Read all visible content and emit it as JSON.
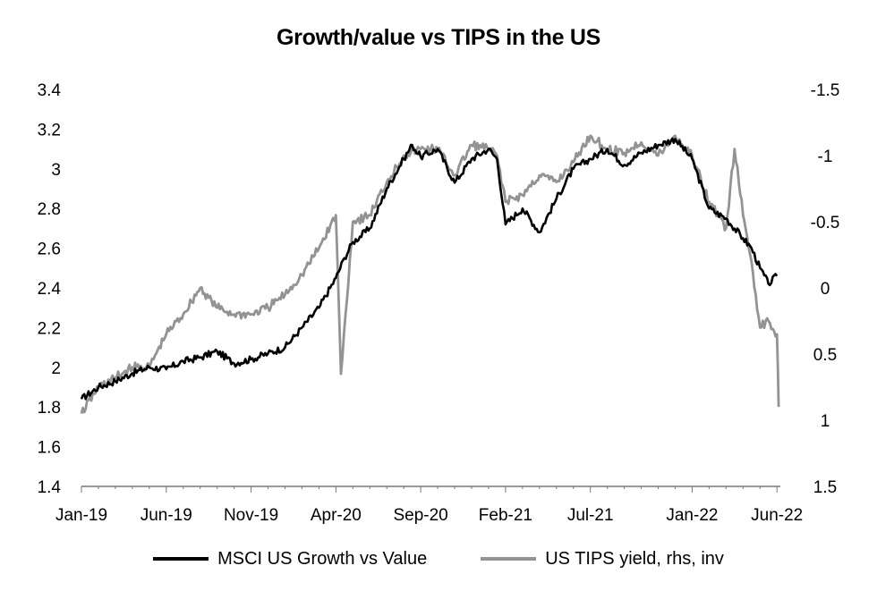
{
  "chart_data": {
    "type": "line",
    "title": "Growth/value vs TIPS in the US",
    "x_tick_labels": [
      "Jan-19",
      "Jun-19",
      "Nov-19",
      "Apr-20",
      "Sep-20",
      "Feb-21",
      "Jul-21",
      "Jan-22",
      "Jun-22"
    ],
    "x_tick_months": [
      0,
      5,
      10,
      15,
      20,
      25,
      30,
      36,
      41
    ],
    "x_range_months": [
      0,
      41.2
    ],
    "y_left": {
      "ylim": [
        1.4,
        3.4
      ],
      "ticks": [
        "1.4",
        "1.6",
        "1.8",
        "2",
        "2.2",
        "2.4",
        "2.6",
        "2.8",
        "3",
        "3.2",
        "3.4"
      ]
    },
    "y_right": {
      "ylim": [
        1.5,
        -1.5
      ],
      "inverted": true,
      "ticks": [
        "1.5",
        "1",
        "0.5",
        "0",
        "-0.5",
        "-1",
        "-1.5"
      ]
    },
    "series": [
      {
        "name": "MSCI US Growth vs Value",
        "axis": "left",
        "color": "#000000",
        "points": [
          [
            0,
            1.84
          ],
          [
            1,
            1.9
          ],
          [
            2,
            1.93
          ],
          [
            3,
            1.97
          ],
          [
            4,
            2.0
          ],
          [
            5,
            1.99
          ],
          [
            6,
            2.03
          ],
          [
            7,
            2.05
          ],
          [
            8,
            2.08
          ],
          [
            9,
            2.02
          ],
          [
            10,
            2.04
          ],
          [
            11,
            2.07
          ],
          [
            12,
            2.1
          ],
          [
            13,
            2.2
          ],
          [
            14,
            2.3
          ],
          [
            15,
            2.45
          ],
          [
            15.5,
            2.55
          ],
          [
            16,
            2.63
          ],
          [
            17,
            2.7
          ],
          [
            18,
            2.9
          ],
          [
            19,
            3.05
          ],
          [
            19.5,
            3.12
          ],
          [
            20,
            3.06
          ],
          [
            21,
            3.1
          ],
          [
            22,
            2.93
          ],
          [
            23,
            3.05
          ],
          [
            24,
            3.1
          ],
          [
            24.5,
            3.05
          ],
          [
            25,
            2.72
          ],
          [
            26,
            2.8
          ],
          [
            27,
            2.68
          ],
          [
            28,
            2.85
          ],
          [
            29,
            3.0
          ],
          [
            30,
            3.05
          ],
          [
            31,
            3.1
          ],
          [
            32,
            3.02
          ],
          [
            33,
            3.08
          ],
          [
            34,
            3.12
          ],
          [
            35,
            3.15
          ],
          [
            36,
            3.05
          ],
          [
            37,
            2.8
          ],
          [
            38,
            2.75
          ],
          [
            39,
            2.65
          ],
          [
            39.5,
            2.6
          ],
          [
            40,
            2.5
          ],
          [
            40.5,
            2.42
          ],
          [
            41,
            2.46
          ]
        ]
      },
      {
        "name": "US TIPS yield, rhs, inv",
        "axis": "right",
        "color": "#939393",
        "points": [
          [
            0,
            0.95
          ],
          [
            1,
            0.75
          ],
          [
            2,
            0.68
          ],
          [
            3,
            0.6
          ],
          [
            4,
            0.6
          ],
          [
            5,
            0.35
          ],
          [
            6,
            0.2
          ],
          [
            7,
            0.0
          ],
          [
            8,
            0.15
          ],
          [
            9,
            0.2
          ],
          [
            10,
            0.2
          ],
          [
            11,
            0.15
          ],
          [
            12,
            0.05
          ],
          [
            13,
            -0.1
          ],
          [
            14,
            -0.3
          ],
          [
            15,
            -0.55
          ],
          [
            15.3,
            0.65
          ],
          [
            16,
            -0.5
          ],
          [
            17,
            -0.55
          ],
          [
            18,
            -0.8
          ],
          [
            19,
            -1.0
          ],
          [
            20,
            -1.05
          ],
          [
            21,
            -1.05
          ],
          [
            22,
            -0.85
          ],
          [
            23,
            -1.08
          ],
          [
            24,
            -1.05
          ],
          [
            24.5,
            -1.0
          ],
          [
            25,
            -0.65
          ],
          [
            26,
            -0.7
          ],
          [
            27,
            -0.85
          ],
          [
            28,
            -0.8
          ],
          [
            29,
            -0.95
          ],
          [
            30,
            -1.15
          ],
          [
            31,
            -1.05
          ],
          [
            32,
            -1.02
          ],
          [
            33,
            -1.1
          ],
          [
            34,
            -1.0
          ],
          [
            35,
            -1.15
          ],
          [
            36,
            -1.0
          ],
          [
            37,
            -0.65
          ],
          [
            38,
            -0.45
          ],
          [
            38.5,
            -1.05
          ],
          [
            39,
            -0.55
          ],
          [
            39.5,
            -0.2
          ],
          [
            40,
            0.3
          ],
          [
            40.5,
            0.25
          ],
          [
            41,
            0.35
          ],
          [
            41.1,
            0.9
          ]
        ]
      }
    ]
  }
}
